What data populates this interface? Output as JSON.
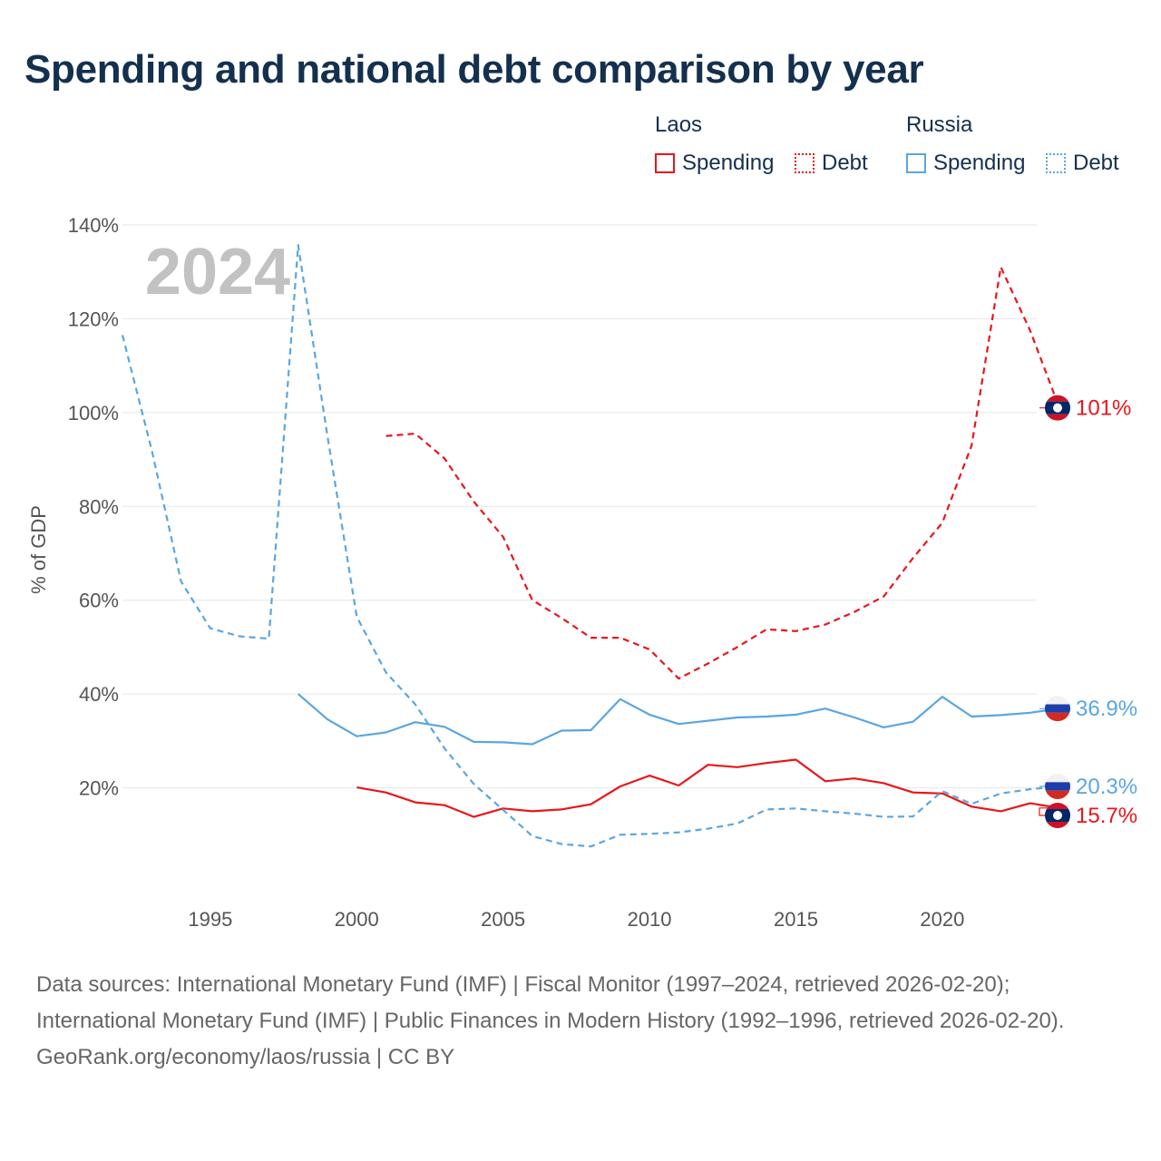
{
  "chart_data": {
    "type": "line",
    "title": "Spending and national debt comparison by year",
    "ylabel": "% of GDP",
    "xlabel": "",
    "year_watermark": "2024",
    "xlim": [
      1992,
      2024
    ],
    "ylim": [
      0,
      140
    ],
    "x_ticks": [
      {
        "value": 1995,
        "label": "1995"
      },
      {
        "value": 2000,
        "label": "2000"
      },
      {
        "value": 2005,
        "label": "2005"
      },
      {
        "value": 2010,
        "label": "2010"
      },
      {
        "value": 2015,
        "label": "2015"
      },
      {
        "value": 2020,
        "label": "2020"
      }
    ],
    "y_ticks": [
      {
        "value": 20,
        "label": "20%"
      },
      {
        "value": 40,
        "label": "40%"
      },
      {
        "value": 60,
        "label": "60%"
      },
      {
        "value": 80,
        "label": "80%"
      },
      {
        "value": 100,
        "label": "100%"
      },
      {
        "value": 120,
        "label": "120%"
      },
      {
        "value": 140,
        "label": "140%"
      }
    ],
    "grid": true,
    "legend": {
      "position": "top-right",
      "groups": [
        {
          "title": "Laos",
          "items": [
            {
              "label": "Spending",
              "series": "laos-spending"
            },
            {
              "label": "Debt",
              "series": "laos-debt"
            }
          ]
        },
        {
          "title": "Russia",
          "items": [
            {
              "label": "Spending",
              "series": "russia-spending"
            },
            {
              "label": "Debt",
              "series": "russia-debt"
            }
          ]
        }
      ]
    },
    "series": [
      {
        "id": "laos-debt",
        "name": "Laos Debt",
        "country": "Laos",
        "metric": "Debt",
        "color": "#e8161c",
        "style": "dashed",
        "points": [
          [
            2001,
            95.0
          ],
          [
            2002,
            95.5
          ],
          [
            2003,
            90.2
          ],
          [
            2004,
            81.0
          ],
          [
            2005,
            73.5
          ],
          [
            2006,
            60.0
          ],
          [
            2007,
            56.2
          ],
          [
            2008,
            52.0
          ],
          [
            2009,
            52.0
          ],
          [
            2010,
            49.5
          ],
          [
            2011,
            43.3
          ],
          [
            2012,
            46.5
          ],
          [
            2013,
            50.0
          ],
          [
            2014,
            53.8
          ],
          [
            2015,
            53.4
          ],
          [
            2016,
            54.8
          ],
          [
            2017,
            57.5
          ],
          [
            2018,
            60.8
          ],
          [
            2019,
            69.0
          ],
          [
            2020,
            76.5
          ],
          [
            2021,
            93.0
          ],
          [
            2022,
            131.0
          ],
          [
            2023,
            117.5
          ],
          [
            2024,
            101.0
          ]
        ],
        "end_label": "101%"
      },
      {
        "id": "laos-spending",
        "name": "Laos Spending",
        "country": "Laos",
        "metric": "Spending",
        "color": "#e8161c",
        "style": "solid",
        "points": [
          [
            2000,
            20.1
          ],
          [
            2001,
            19.0
          ],
          [
            2002,
            16.9
          ],
          [
            2003,
            16.3
          ],
          [
            2004,
            13.8
          ],
          [
            2005,
            15.6
          ],
          [
            2006,
            15.0
          ],
          [
            2007,
            15.4
          ],
          [
            2008,
            16.5
          ],
          [
            2009,
            20.3
          ],
          [
            2010,
            22.6
          ],
          [
            2011,
            20.5
          ],
          [
            2012,
            24.9
          ],
          [
            2013,
            24.4
          ],
          [
            2014,
            25.3
          ],
          [
            2015,
            26.0
          ],
          [
            2016,
            21.4
          ],
          [
            2017,
            22.0
          ],
          [
            2018,
            21.0
          ],
          [
            2019,
            19.0
          ],
          [
            2020,
            18.8
          ],
          [
            2021,
            16.0
          ],
          [
            2022,
            15.0
          ],
          [
            2023,
            16.7
          ],
          [
            2024,
            15.7
          ]
        ],
        "end_label": "15.7%"
      },
      {
        "id": "russia-debt",
        "name": "Russia Debt",
        "country": "Russia",
        "metric": "Debt",
        "color": "#5aa6e0",
        "style": "dashed",
        "points": [
          [
            1992,
            116.5
          ],
          [
            1993,
            92.0
          ],
          [
            1994,
            64.0
          ],
          [
            1995,
            54.0
          ],
          [
            1996,
            52.3
          ],
          [
            1997,
            51.8
          ],
          [
            1998,
            135.7
          ],
          [
            1999,
            95.0
          ],
          [
            2000,
            56.5
          ],
          [
            2001,
            44.6
          ],
          [
            2002,
            37.8
          ],
          [
            2003,
            28.4
          ],
          [
            2004,
            20.8
          ],
          [
            2005,
            15.3
          ],
          [
            2006,
            9.7
          ],
          [
            2007,
            8.0
          ],
          [
            2008,
            7.5
          ],
          [
            2009,
            10.0
          ],
          [
            2010,
            10.2
          ],
          [
            2011,
            10.5
          ],
          [
            2012,
            11.3
          ],
          [
            2013,
            12.4
          ],
          [
            2014,
            15.4
          ],
          [
            2015,
            15.6
          ],
          [
            2016,
            15.0
          ],
          [
            2017,
            14.5
          ],
          [
            2018,
            13.8
          ],
          [
            2019,
            13.9
          ],
          [
            2020,
            19.3
          ],
          [
            2021,
            16.6
          ],
          [
            2022,
            18.8
          ],
          [
            2023,
            19.7
          ],
          [
            2024,
            20.3
          ]
        ],
        "end_label": "20.3%"
      },
      {
        "id": "russia-spending",
        "name": "Russia Spending",
        "country": "Russia",
        "metric": "Spending",
        "color": "#5aa6e0",
        "style": "solid",
        "points": [
          [
            1998,
            40.0
          ],
          [
            1999,
            34.6
          ],
          [
            2000,
            31.0
          ],
          [
            2001,
            31.8
          ],
          [
            2002,
            34.0
          ],
          [
            2003,
            33.0
          ],
          [
            2004,
            29.8
          ],
          [
            2005,
            29.7
          ],
          [
            2006,
            29.3
          ],
          [
            2007,
            32.2
          ],
          [
            2008,
            32.3
          ],
          [
            2009,
            38.9
          ],
          [
            2010,
            35.6
          ],
          [
            2011,
            33.6
          ],
          [
            2012,
            34.3
          ],
          [
            2013,
            35.0
          ],
          [
            2014,
            35.2
          ],
          [
            2015,
            35.6
          ],
          [
            2016,
            36.9
          ],
          [
            2017,
            35.0
          ],
          [
            2018,
            32.9
          ],
          [
            2019,
            34.1
          ],
          [
            2020,
            39.4
          ],
          [
            2021,
            35.2
          ],
          [
            2022,
            35.5
          ],
          [
            2023,
            36.0
          ],
          [
            2024,
            36.9
          ]
        ],
        "end_label": "36.9%"
      }
    ]
  },
  "flags": {
    "laos": {
      "top": "#ce1126",
      "middle": "#002868",
      "bottom": "#ce1126",
      "disc": "#ffffff"
    },
    "russia": {
      "top": "#f2f2f2",
      "middle": "#1c3faa",
      "bottom": "#d52b1e"
    }
  },
  "footer": {
    "sources": "Data sources: International Monetary Fund (IMF) | Fiscal Monitor (1997–2024, retrieved 2026-02-20); International Monetary Fund (IMF) | Public Finances in Modern History (1992–1996, retrieved 2026-02-20).",
    "credit": "GeoRank.org/economy/laos/russia | CC BY"
  }
}
